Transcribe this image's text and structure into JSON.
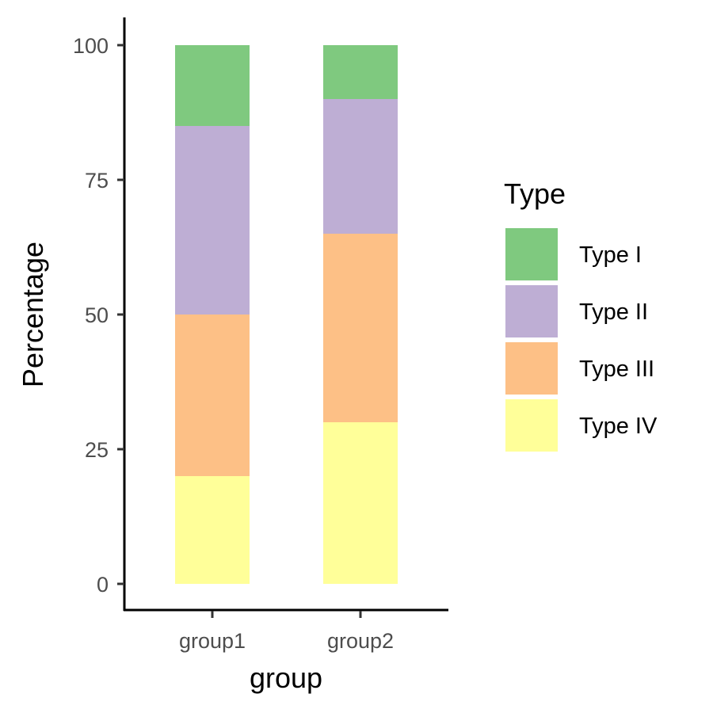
{
  "chart_data": {
    "type": "bar",
    "stacked": true,
    "categories": [
      "group1",
      "group2"
    ],
    "series": [
      {
        "name": "Type I",
        "values": [
          15,
          10
        ],
        "color": "#7FC97F"
      },
      {
        "name": "Type II",
        "values": [
          35,
          25
        ],
        "color": "#BEAED4"
      },
      {
        "name": "Type III",
        "values": [
          30,
          35
        ],
        "color": "#FDC086"
      },
      {
        "name": "Type IV",
        "values": [
          20,
          30
        ],
        "color": "#FFFF99"
      }
    ],
    "stack_order_bottom_to_top": [
      "Type IV",
      "Type III",
      "Type II",
      "Type I"
    ],
    "title": "",
    "xlabel": "group",
    "ylabel": "Percentage",
    "ylim": [
      0,
      100
    ],
    "yticks": [
      0,
      25,
      50,
      75,
      100
    ],
    "grid": false,
    "legend": {
      "title": "Type",
      "position": "right"
    }
  }
}
